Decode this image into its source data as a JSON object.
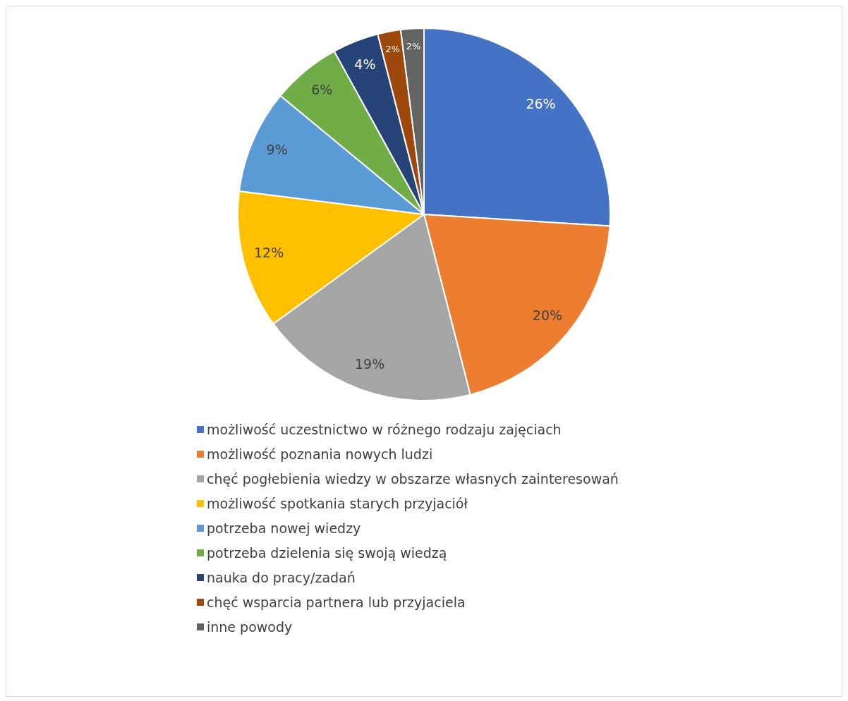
{
  "chart_data": {
    "type": "pie",
    "categories": [
      "możliwość uczestnictwo w różnego rodzaju zajęciach",
      "możliwość poznania nowych ludzi",
      "chęć pogłebienia wiedzy w obszarze własnych zainteresowań",
      "możliwość spotkania starych przyjaciół",
      "potrzeba nowej wiedzy",
      "potrzeba dzielenia się swoją wiedzą",
      "nauka do pracy/zadań",
      "chęć wsparcia partnera lub przyjaciela",
      "inne powody"
    ],
    "values": [
      26,
      20,
      19,
      12,
      9,
      6,
      4,
      2,
      2
    ],
    "colors": [
      "#4472c4",
      "#ed7d31",
      "#a5a5a5",
      "#ffc000",
      "#5b9bd5",
      "#70ad47",
      "#264478",
      "#9e480e",
      "#636363"
    ],
    "value_labels": [
      "26%",
      "20%",
      "19%",
      "12%",
      "9%",
      "6%",
      "4%",
      "2%",
      "2%"
    ],
    "legend": "bottom"
  }
}
